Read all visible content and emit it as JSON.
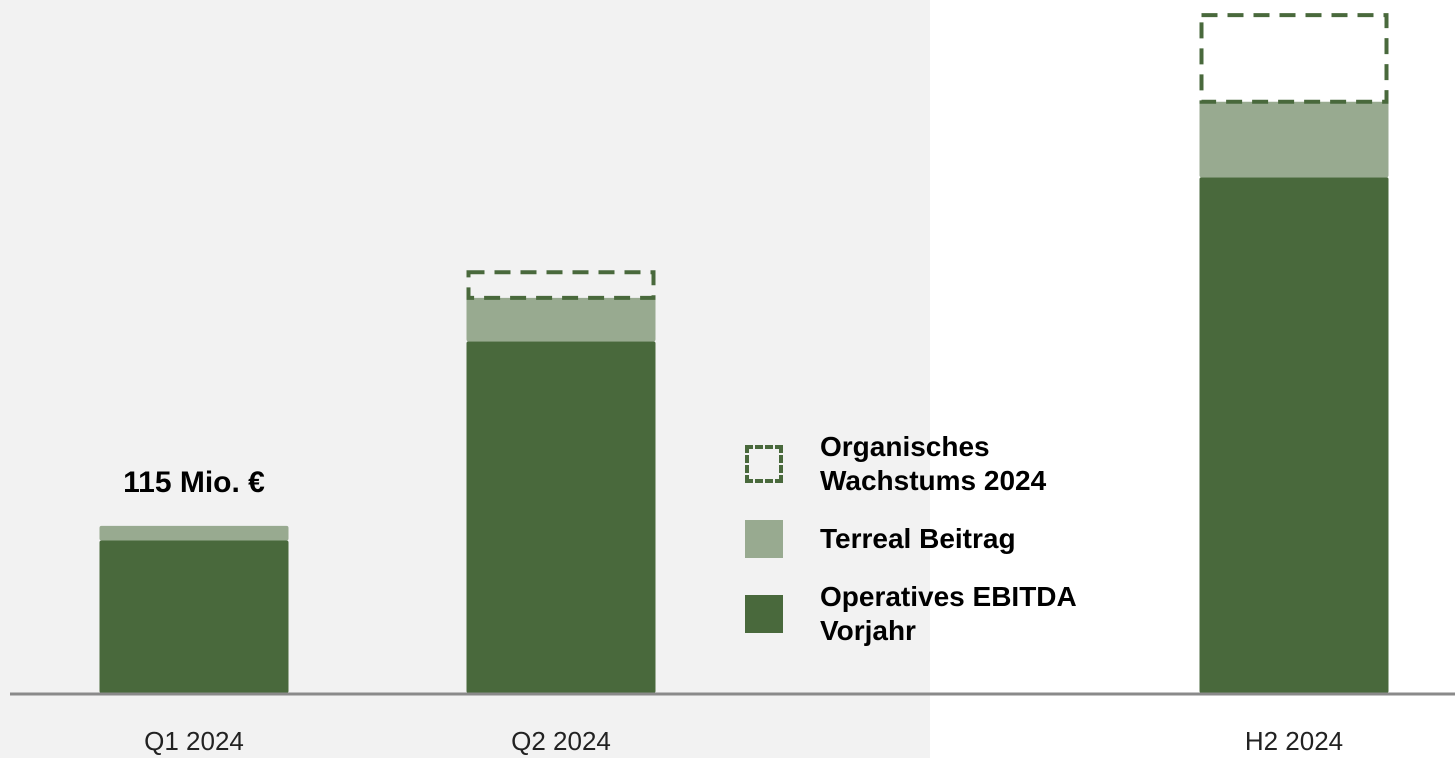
{
  "chart_data": {
    "type": "stacked_bar",
    "categories": [
      "Q1 2024",
      "Q2 2024",
      "H2 2024"
    ],
    "series": [
      {
        "name": "Operatives EBITDA Vorjahr",
        "color": "#49693c",
        "style": "solid",
        "values": [
          105,
          242,
          355
        ]
      },
      {
        "name": "Terreal Beitrag",
        "color": "#98aa90",
        "style": "solid",
        "values": [
          10,
          30,
          52
        ]
      },
      {
        "name": "Organisches Wachstums 2024",
        "color": "#49693c",
        "style": "dashed",
        "values": [
          null,
          19,
          61
        ]
      }
    ],
    "annotations": [
      "115 Mio. €"
    ],
    "ylim": [
      0,
      477
    ]
  }
}
